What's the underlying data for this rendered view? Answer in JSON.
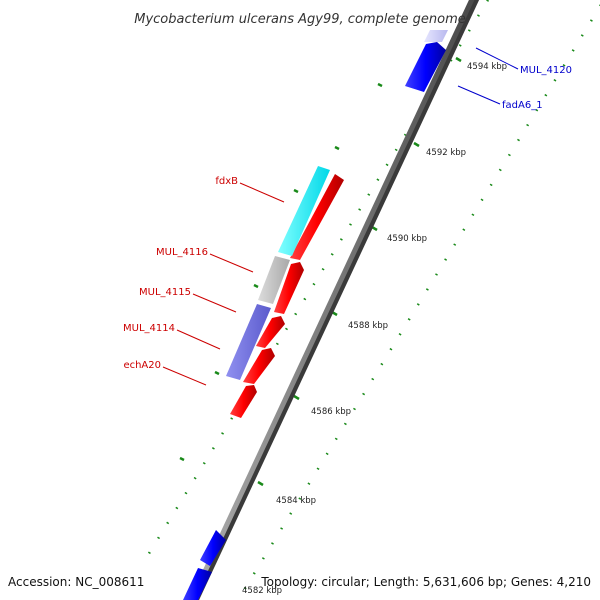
{
  "title": "Mycobacterium ulcerans Agy99, complete genome",
  "footer": {
    "accession": "Accession: NC_008611",
    "summary": "Topology: circular; Length: 5,631,606 bp; Genes: 4,210"
  },
  "ticks": [
    {
      "label": "4594 kbp"
    },
    {
      "label": "4592 kbp"
    },
    {
      "label": "4590 kbp"
    },
    {
      "label": "4588 kbp"
    },
    {
      "label": "4586 kbp"
    },
    {
      "label": "4584 kbp"
    },
    {
      "label": "4582 kbp"
    }
  ],
  "genes": [
    {
      "name": "MUL_4120",
      "color": "#0000cc"
    },
    {
      "name": "fadA6_1",
      "color": "#0000cc"
    },
    {
      "name": "fdxB",
      "color": "#cc0000"
    },
    {
      "name": "MUL_4116",
      "color": "#cc0000"
    },
    {
      "name": "MUL_4115",
      "color": "#cc0000"
    },
    {
      "name": "MUL_4114",
      "color": "#cc0000"
    },
    {
      "name": "echA20",
      "color": "#cc0000"
    }
  ],
  "colors": {
    "backbone": "#808080",
    "forward_cds": "#ff0000",
    "reverse_cds": "#0000ff",
    "cog_cyan": "#00ffff",
    "cog_gray": "#c0c0c0",
    "cog_purple": "#7070e0",
    "tick_dots": "#1a8a1a"
  }
}
